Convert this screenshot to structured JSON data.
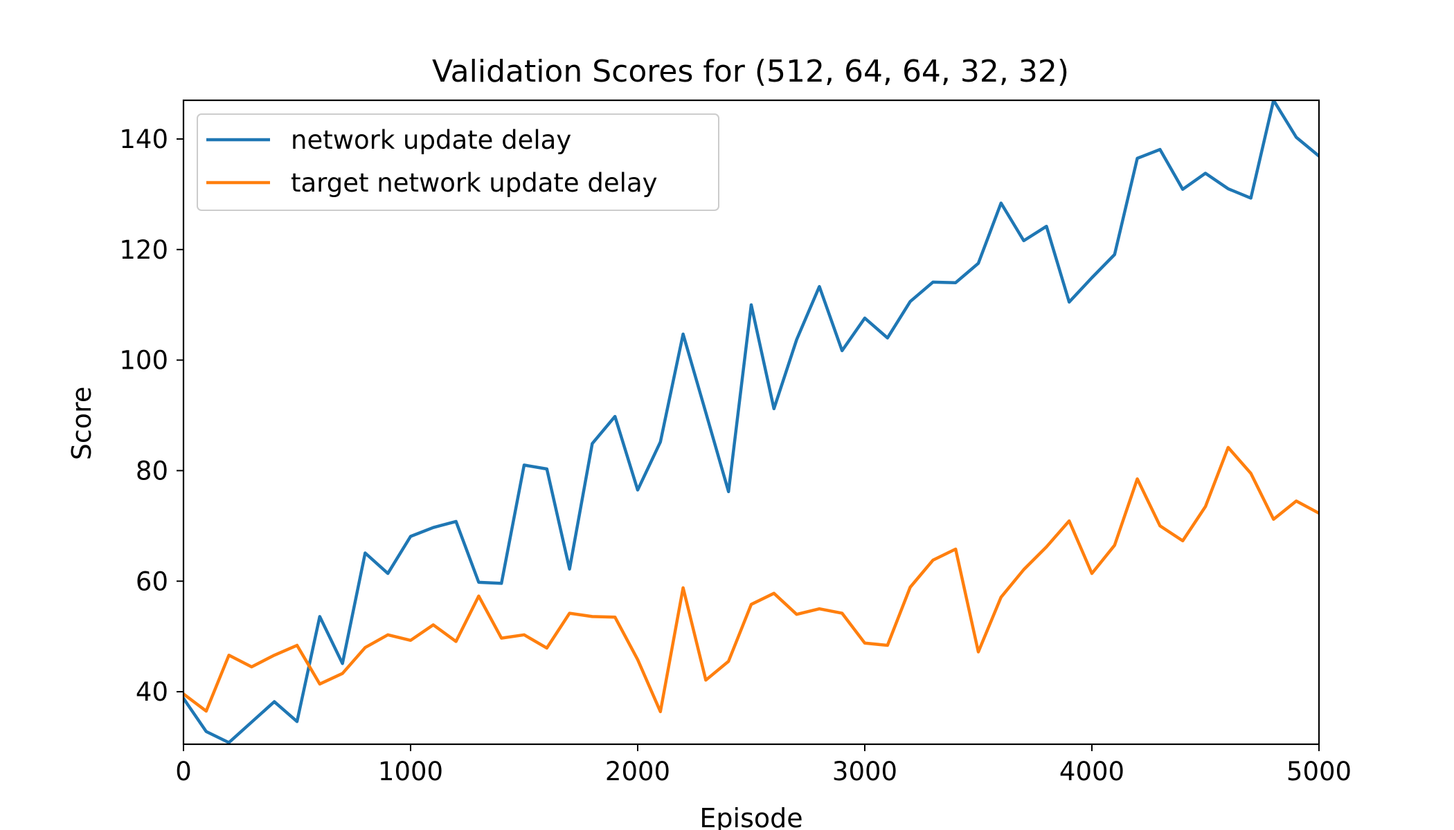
{
  "chart_data": {
    "type": "line",
    "title": "Validation Scores for (512, 64, 64, 32, 32)",
    "xlabel": "Episode",
    "ylabel": "Score",
    "xlim": [
      0,
      5000
    ],
    "ylim": [
      30.5,
      147
    ],
    "xticks": [
      0,
      1000,
      2000,
      3000,
      4000,
      5000
    ],
    "yticks": [
      40,
      60,
      80,
      100,
      120,
      140
    ],
    "grid": false,
    "legend_position": "upper-left",
    "x": [
      0,
      100,
      200,
      300,
      400,
      500,
      600,
      700,
      800,
      900,
      1000,
      1100,
      1200,
      1300,
      1400,
      1500,
      1600,
      1700,
      1800,
      1900,
      2000,
      2100,
      2200,
      2300,
      2400,
      2500,
      2600,
      2700,
      2800,
      2900,
      3000,
      3100,
      3200,
      3300,
      3400,
      3500,
      3600,
      3700,
      3800,
      3900,
      4000,
      4100,
      4200,
      4300,
      4400,
      4500,
      4600,
      4700,
      4800,
      4900,
      5000
    ],
    "series": [
      {
        "name": "network update delay",
        "color": "#1f77b4",
        "values": [
          38.8,
          32.8,
          30.8,
          34.5,
          38.2,
          34.6,
          53.6,
          45.1,
          65.1,
          61.4,
          68.1,
          69.7,
          70.8,
          59.8,
          59.6,
          81.0,
          80.3,
          62.2,
          84.9,
          89.8,
          76.5,
          85.2,
          104.7,
          90.5,
          76.2,
          110.0,
          91.2,
          103.7,
          113.3,
          101.7,
          107.6,
          104.0,
          110.6,
          114.1,
          114.0,
          117.5,
          128.4,
          121.6,
          124.2,
          110.5,
          114.9,
          119.1,
          136.5,
          138.1,
          130.9,
          133.8,
          131.0,
          129.3,
          147.0,
          140.3,
          136.9
        ]
      },
      {
        "name": "target network update delay",
        "color": "#ff7f0e",
        "values": [
          39.6,
          36.5,
          46.6,
          44.5,
          46.6,
          48.4,
          41.4,
          43.3,
          48.0,
          50.3,
          49.3,
          52.1,
          49.1,
          57.3,
          49.7,
          50.3,
          47.9,
          54.2,
          53.6,
          53.5,
          45.8,
          36.4,
          58.8,
          42.1,
          45.5,
          55.8,
          57.8,
          54.0,
          55.0,
          54.2,
          48.8,
          48.4,
          58.9,
          63.8,
          65.8,
          47.2,
          57.1,
          62.1,
          66.2,
          70.9,
          61.4,
          66.5,
          78.5,
          70.0,
          67.3,
          73.5,
          84.2,
          79.5,
          71.2,
          74.5,
          72.3
        ]
      }
    ]
  }
}
